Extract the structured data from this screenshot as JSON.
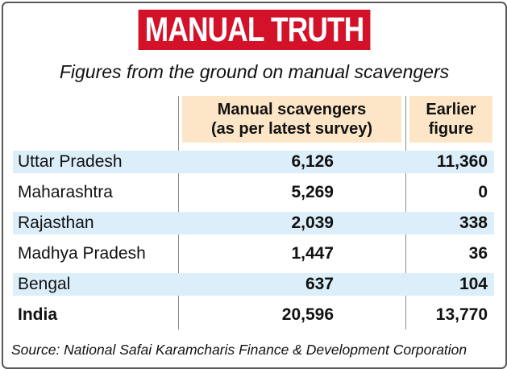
{
  "title": "MANUAL TRUTH",
  "subtitle": "Figures from the ground on manual scavengers",
  "chart_data": {
    "type": "table",
    "columns": [
      "",
      "Manual scavengers (as per latest survey)",
      "Earlier figure"
    ],
    "header": {
      "latest_line1": "Manual scavengers",
      "latest_line2": "(as per latest survey)",
      "earlier_line1": "Earlier",
      "earlier_line2": "figure"
    },
    "rows": [
      {
        "state": "Uttar Pradesh",
        "latest": "6,126",
        "earlier": "11,360"
      },
      {
        "state": "Maharashtra",
        "latest": "5,269",
        "earlier": "0"
      },
      {
        "state": "Rajasthan",
        "latest": "2,039",
        "earlier": "338"
      },
      {
        "state": "Madhya Pradesh",
        "latest": "1,447",
        "earlier": "36"
      },
      {
        "state": "Bengal",
        "latest": "637",
        "earlier": "104"
      },
      {
        "state": "India",
        "latest": "20,596",
        "earlier": "13,770"
      }
    ]
  },
  "source": "Source: National Safai Karamcharis Finance & Development Corporation",
  "colors": {
    "title_background": "#d3122a",
    "header_background": "#fde6c8",
    "row_shading": "#dbeef9"
  }
}
